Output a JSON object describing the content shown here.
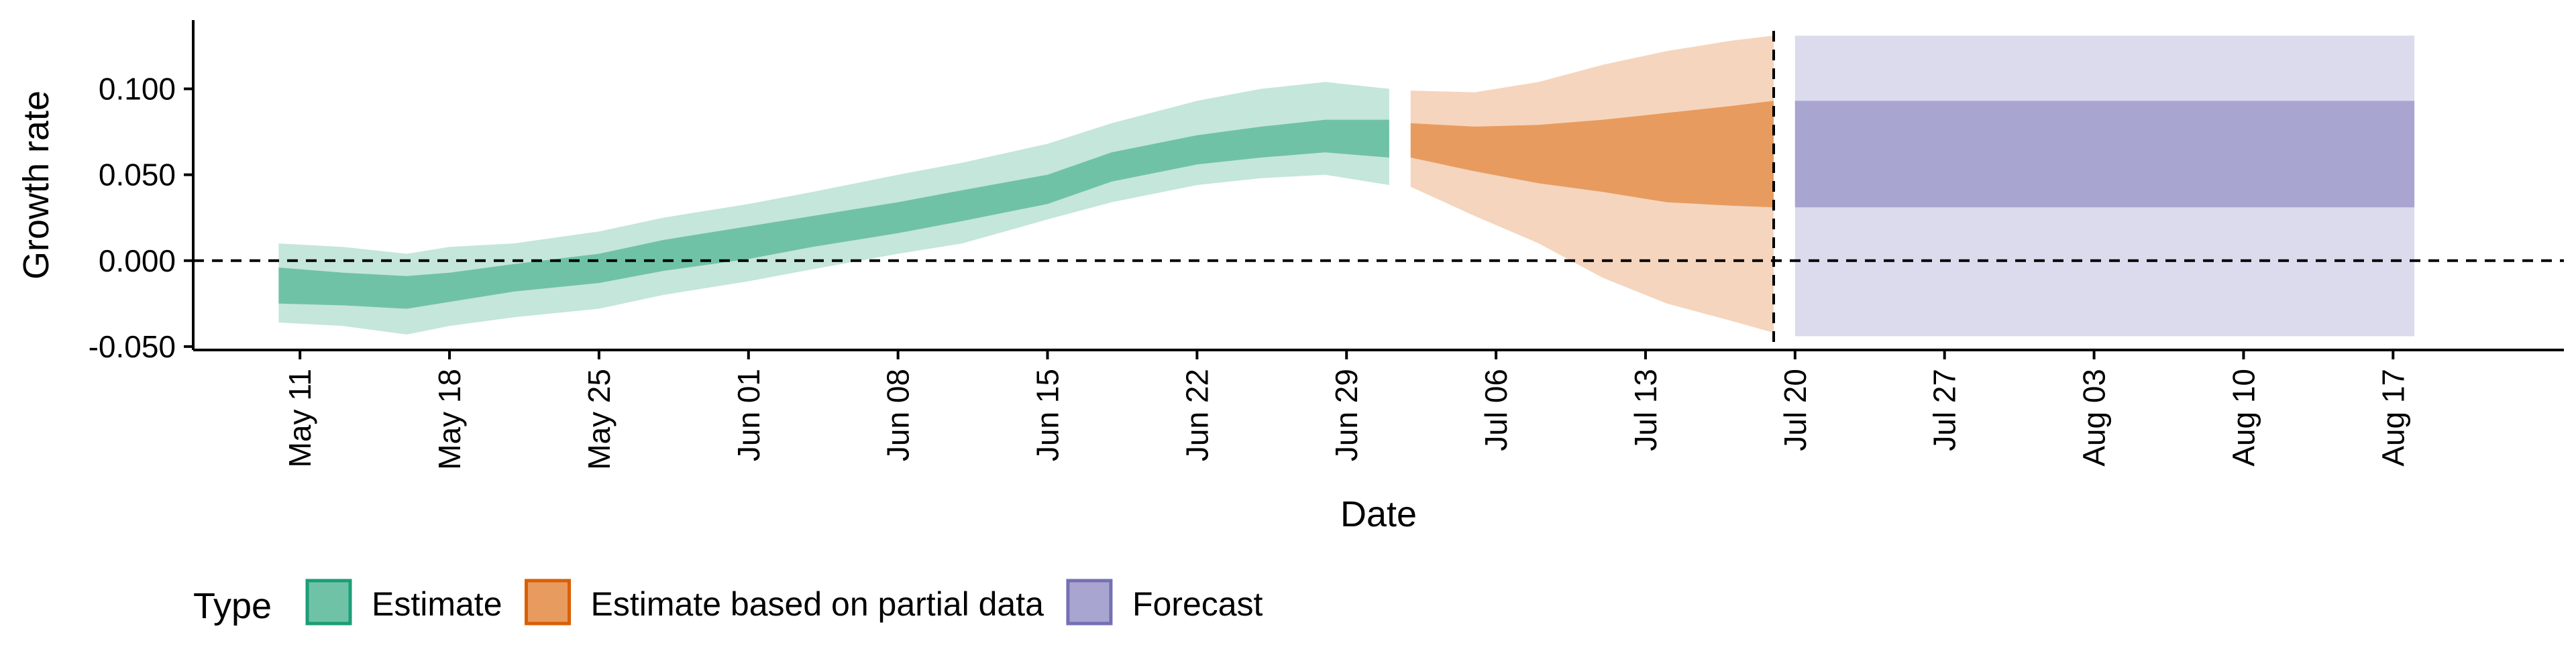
{
  "chart_data": {
    "type": "area",
    "xlabel": "Date",
    "ylabel": "Growth rate",
    "x_axis": {
      "type": "date",
      "range": [
        "2020-05-06",
        "2020-08-25"
      ],
      "tick_dates": [
        "2020-05-11",
        "2020-05-18",
        "2020-05-25",
        "2020-06-01",
        "2020-06-08",
        "2020-06-15",
        "2020-06-22",
        "2020-06-29",
        "2020-07-06",
        "2020-07-13",
        "2020-07-20",
        "2020-07-27",
        "2020-08-03",
        "2020-08-10",
        "2020-08-17"
      ],
      "tick_labels": [
        "May 11",
        "May 18",
        "May 25",
        "Jun 01",
        "Jun 08",
        "Jun 15",
        "Jun 22",
        "Jun 29",
        "Jul 06",
        "Jul 13",
        "Jul 20",
        "Jul 27",
        "Aug 03",
        "Aug 10",
        "Aug 17"
      ]
    },
    "y_axis": {
      "range": [
        -0.052,
        0.14
      ],
      "ticks": [
        -0.05,
        0.0,
        0.05,
        0.1
      ],
      "tick_labels": [
        "-0.050",
        "0.000",
        "0.050",
        "0.100"
      ]
    },
    "reference_lines": [
      {
        "orientation": "horizontal",
        "value": 0.0,
        "style": "dashed"
      },
      {
        "orientation": "vertical",
        "value": "2020-07-19",
        "style": "dashed"
      }
    ],
    "grid": false,
    "legend": {
      "title": "Type",
      "position": "bottom-left",
      "entries": [
        {
          "label": "Estimate",
          "fill": "#70c2a7",
          "stroke": "#1b9e77"
        },
        {
          "label": "Estimate based on partial data",
          "fill": "#e89b5f",
          "stroke": "#d95f02"
        },
        {
          "label": "Forecast",
          "fill": "#a8a5d0",
          "stroke": "#7570b3"
        }
      ]
    },
    "series": [
      {
        "name": "Estimate",
        "colors": {
          "outer": "#c5e6da",
          "inner": "#70c2a7"
        },
        "points": [
          {
            "date": "2020-05-10",
            "outer": [
              -0.036,
              0.01
            ],
            "inner": [
              -0.025,
              -0.004
            ]
          },
          {
            "date": "2020-05-13",
            "outer": [
              -0.038,
              0.008
            ],
            "inner": [
              -0.026,
              -0.007
            ]
          },
          {
            "date": "2020-05-16",
            "outer": [
              -0.043,
              0.004
            ],
            "inner": [
              -0.028,
              -0.009
            ]
          },
          {
            "date": "2020-05-18",
            "outer": [
              -0.038,
              0.008
            ],
            "inner": [
              -0.024,
              -0.007
            ]
          },
          {
            "date": "2020-05-21",
            "outer": [
              -0.033,
              0.01
            ],
            "inner": [
              -0.018,
              -0.002
            ]
          },
          {
            "date": "2020-05-25",
            "outer": [
              -0.028,
              0.017
            ],
            "inner": [
              -0.013,
              0.004
            ]
          },
          {
            "date": "2020-05-28",
            "outer": [
              -0.02,
              0.025
            ],
            "inner": [
              -0.006,
              0.012
            ]
          },
          {
            "date": "2020-06-01",
            "outer": [
              -0.012,
              0.033
            ],
            "inner": [
              0.001,
              0.02
            ]
          },
          {
            "date": "2020-06-04",
            "outer": [
              -0.005,
              0.04
            ],
            "inner": [
              0.008,
              0.026
            ]
          },
          {
            "date": "2020-06-08",
            "outer": [
              0.004,
              0.05
            ],
            "inner": [
              0.016,
              0.034
            ]
          },
          {
            "date": "2020-06-11",
            "outer": [
              0.01,
              0.057
            ],
            "inner": [
              0.023,
              0.041
            ]
          },
          {
            "date": "2020-06-15",
            "outer": [
              0.024,
              0.068
            ],
            "inner": [
              0.033,
              0.05
            ]
          },
          {
            "date": "2020-06-18",
            "outer": [
              0.034,
              0.08
            ],
            "inner": [
              0.046,
              0.063
            ]
          },
          {
            "date": "2020-06-22",
            "outer": [
              0.044,
              0.093
            ],
            "inner": [
              0.056,
              0.073
            ]
          },
          {
            "date": "2020-06-25",
            "outer": [
              0.048,
              0.1
            ],
            "inner": [
              0.06,
              0.078
            ]
          },
          {
            "date": "2020-06-28",
            "outer": [
              0.05,
              0.104
            ],
            "inner": [
              0.063,
              0.082
            ]
          },
          {
            "date": "2020-07-01",
            "outer": [
              0.044,
              0.1
            ],
            "inner": [
              0.06,
              0.082
            ]
          }
        ]
      },
      {
        "name": "Estimate based on partial data",
        "colors": {
          "outer": "#f5d5bd",
          "inner": "#e89b5f"
        },
        "points": [
          {
            "date": "2020-07-02",
            "outer": [
              0.043,
              0.099
            ],
            "inner": [
              0.06,
              0.08
            ]
          },
          {
            "date": "2020-07-05",
            "outer": [
              0.026,
              0.098
            ],
            "inner": [
              0.052,
              0.078
            ]
          },
          {
            "date": "2020-07-08",
            "outer": [
              0.01,
              0.104
            ],
            "inner": [
              0.045,
              0.079
            ]
          },
          {
            "date": "2020-07-11",
            "outer": [
              -0.01,
              0.114
            ],
            "inner": [
              0.04,
              0.082
            ]
          },
          {
            "date": "2020-07-14",
            "outer": [
              -0.025,
              0.122
            ],
            "inner": [
              0.034,
              0.086
            ]
          },
          {
            "date": "2020-07-17",
            "outer": [
              -0.035,
              0.128
            ],
            "inner": [
              0.032,
              0.09
            ]
          },
          {
            "date": "2020-07-19",
            "outer": [
              -0.042,
              0.131
            ],
            "inner": [
              0.031,
              0.093
            ]
          }
        ]
      },
      {
        "name": "Forecast",
        "colors": {
          "outer": "#dcdbed",
          "inner": "#a8a5d0"
        },
        "points": [
          {
            "date": "2020-07-20",
            "outer": [
              -0.044,
              0.131
            ],
            "inner": [
              0.031,
              0.093
            ]
          },
          {
            "date": "2020-08-18",
            "outer": [
              -0.044,
              0.131
            ],
            "inner": [
              0.031,
              0.093
            ]
          }
        ]
      }
    ]
  }
}
